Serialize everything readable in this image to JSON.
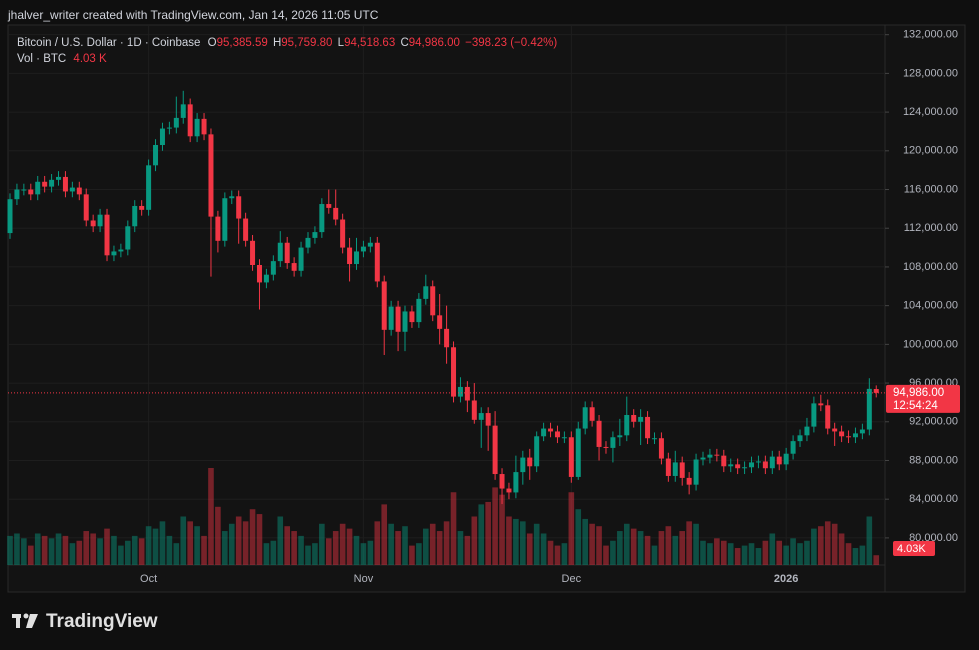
{
  "header": {
    "author": "jhalver_writer created with TradingView.com, Jan 14, 2026 11:05 UTC",
    "brand": "TradingView"
  },
  "chart_data": {
    "type": "candlestick",
    "title": "Bitcoin / U.S. Dollar · 1D · Coinbase",
    "legend": {
      "o": "O",
      "open": "95,385.59",
      "h": "H",
      "high": "95,759.80",
      "l": "L",
      "low": "94,518.63",
      "c": "C",
      "close": "94,986.00",
      "change": "−398.23 (−0.42%)",
      "vol_name": "Vol · BTC",
      "vol": "4.03 K"
    },
    "last_price_label": "94,986.00",
    "countdown": "12:54:24",
    "volume_tag": "4.03K",
    "up_color": "#089981",
    "down_color": "#f23645",
    "categories": [
      null,
      null,
      null,
      null,
      null,
      null,
      null,
      null,
      null,
      null,
      null,
      null,
      null,
      null,
      null,
      null,
      null,
      null,
      null,
      null,
      "Oct",
      null,
      null,
      null,
      null,
      null,
      null,
      null,
      null,
      null,
      null,
      null,
      null,
      null,
      null,
      null,
      null,
      null,
      null,
      null,
      null,
      null,
      null,
      null,
      null,
      null,
      null,
      null,
      null,
      null,
      null,
      "Nov",
      null,
      null,
      null,
      null,
      null,
      null,
      null,
      null,
      null,
      null,
      null,
      null,
      null,
      null,
      null,
      null,
      null,
      null,
      null,
      null,
      null,
      null,
      null,
      null,
      null,
      null,
      null,
      null,
      null,
      "Dec",
      null,
      null,
      null,
      null,
      null,
      null,
      null,
      null,
      null,
      null,
      null,
      null,
      null,
      null,
      null,
      null,
      null,
      null,
      null,
      null,
      null,
      null,
      null,
      null,
      null,
      null,
      null,
      null,
      null,
      null,
      "2026",
      null,
      null,
      null,
      null,
      null,
      null,
      null,
      null,
      null,
      null,
      null,
      null,
      null
    ],
    "open": [
      111500,
      115000,
      116000,
      116000,
      115500,
      116800,
      116300,
      117000,
      117300,
      115800,
      116200,
      115500,
      112800,
      112200,
      113400,
      109200,
      109600,
      109800,
      112200,
      114300,
      113900,
      118500,
      120600,
      122300,
      122400,
      123400,
      124800,
      121500,
      123300,
      121700,
      113200,
      110700,
      115100,
      115300,
      113000,
      110700,
      108200,
      106400,
      107200,
      108600,
      110500,
      108400,
      107600,
      110000,
      111000,
      111600,
      114500,
      114100,
      112900,
      110000,
      108300,
      109600,
      110100,
      110500,
      106500,
      101500,
      103900,
      101300,
      103400,
      102300,
      104700,
      106000,
      103000,
      101600,
      99700,
      94600,
      95600,
      94200,
      92200,
      92900,
      91600,
      86600,
      85100,
      84700,
      86800,
      88300,
      87400,
      90500,
      91300,
      91000,
      90400,
      90400,
      86300,
      91300,
      93500,
      92100,
      89400,
      89300,
      90400,
      90600,
      92700,
      92000,
      92500,
      90300,
      90300,
      88200,
      86400,
      87800,
      86200,
      85500,
      88100,
      88300,
      88600,
      88500,
      87400,
      87600,
      87200,
      87300,
      87800,
      87900,
      87200,
      88400,
      87600,
      88700,
      90000,
      90600,
      91500,
      93900,
      93700,
      91300,
      91000,
      90500,
      90400,
      90800,
      91200,
      95385.59
    ],
    "high": [
      115600,
      116600,
      116600,
      116600,
      117400,
      117400,
      117600,
      117900,
      117900,
      116800,
      116800,
      116100,
      113400,
      114000,
      114000,
      110200,
      110400,
      112800,
      114900,
      114900,
      119100,
      121200,
      122900,
      123000,
      125600,
      126200,
      125400,
      123900,
      123900,
      122300,
      113800,
      115700,
      115900,
      115900,
      113600,
      111300,
      108800,
      107800,
      109200,
      111700,
      111100,
      109000,
      110600,
      111600,
      112200,
      115100,
      116000,
      116000,
      113500,
      111000,
      111000,
      110700,
      111100,
      111100,
      107100,
      104500,
      104500,
      104000,
      104000,
      105300,
      107200,
      106600,
      105200,
      104000,
      100300,
      96600,
      96200,
      96000,
      93500,
      93500,
      93100,
      87200,
      85700,
      88500,
      89000,
      89200,
      91000,
      91900,
      91900,
      91600,
      91000,
      91000,
      92000,
      94100,
      94100,
      92700,
      90000,
      91000,
      92300,
      94600,
      93300,
      93300,
      93100,
      90900,
      90900,
      88800,
      89000,
      88400,
      86800,
      88700,
      88900,
      89200,
      89200,
      89100,
      88200,
      88200,
      87900,
      88400,
      88500,
      88500,
      89000,
      89000,
      89300,
      90600,
      91200,
      92400,
      94600,
      94800,
      94300,
      91900,
      91600,
      91100,
      91400,
      91800,
      96500,
      95759.8
    ],
    "low": [
      110900,
      114400,
      115400,
      114900,
      114900,
      115700,
      115700,
      116400,
      115200,
      115200,
      114900,
      112200,
      111600,
      111600,
      108600,
      108600,
      109000,
      109200,
      111600,
      113300,
      113300,
      117900,
      120000,
      121700,
      121800,
      122800,
      120900,
      120900,
      121100,
      107000,
      109500,
      110100,
      114500,
      110400,
      110100,
      107600,
      103600,
      105800,
      106600,
      108000,
      107800,
      107000,
      107000,
      109400,
      110400,
      111000,
      113500,
      112300,
      109400,
      106500,
      107700,
      109000,
      109500,
      105900,
      98900,
      100900,
      99300,
      99300,
      101700,
      101700,
      104100,
      102400,
      100000,
      98000,
      94000,
      94000,
      93000,
      91800,
      89300,
      89000,
      86000,
      83500,
      84000,
      84100,
      85500,
      86000,
      86800,
      90000,
      90400,
      89800,
      89800,
      85700,
      86000,
      90700,
      91500,
      88000,
      88700,
      87800,
      89500,
      90000,
      91400,
      89600,
      89700,
      89700,
      87600,
      85800,
      85800,
      85400,
      84500,
      84900,
      87500,
      87700,
      87900,
      86800,
      86800,
      86600,
      86600,
      86700,
      87200,
      86600,
      86600,
      87000,
      87000,
      88100,
      89400,
      90000,
      90900,
      93100,
      90700,
      89500,
      89900,
      89800,
      89800,
      90200,
      90600,
      94518.63
    ],
    "close": [
      115000,
      116000,
      116000,
      115500,
      116800,
      116300,
      117000,
      117300,
      115800,
      116200,
      115500,
      112800,
      112200,
      113400,
      109200,
      109600,
      109800,
      112200,
      114300,
      113900,
      118500,
      120600,
      122300,
      122400,
      123400,
      124800,
      121500,
      123300,
      121700,
      113200,
      110700,
      115100,
      115300,
      113000,
      110700,
      108200,
      106400,
      107200,
      108600,
      110500,
      108400,
      107600,
      110000,
      111000,
      111600,
      114500,
      114100,
      112900,
      110000,
      108300,
      109600,
      110100,
      110500,
      106500,
      101500,
      103900,
      101300,
      103400,
      102300,
      104700,
      106000,
      103000,
      101600,
      99700,
      94600,
      95600,
      94200,
      92200,
      92900,
      91600,
      86600,
      85100,
      84700,
      86800,
      88300,
      87400,
      90500,
      91300,
      91000,
      90400,
      90400,
      86300,
      91300,
      93500,
      92100,
      89400,
      89300,
      90400,
      90600,
      92700,
      92000,
      92500,
      90300,
      90300,
      88200,
      86400,
      87800,
      86200,
      85500,
      88100,
      88300,
      88600,
      88500,
      87400,
      87600,
      87200,
      87300,
      87800,
      87900,
      87200,
      88400,
      87600,
      88700,
      90000,
      90600,
      91500,
      93900,
      93700,
      91300,
      91000,
      90500,
      90400,
      90800,
      91200,
      95400,
      94986
    ],
    "volume": [
      12,
      13,
      11,
      8,
      13,
      12,
      11,
      13,
      12,
      9,
      10,
      14,
      13,
      11,
      15,
      12,
      8,
      10,
      12,
      11,
      16,
      15,
      18,
      12,
      9,
      20,
      18,
      16,
      12,
      40,
      24,
      14,
      17,
      20,
      18,
      23,
      21,
      9,
      10,
      20,
      16,
      14,
      12,
      8,
      9,
      17,
      11,
      14,
      17,
      15,
      12,
      9,
      10,
      18,
      25,
      17,
      14,
      16,
      8,
      9,
      15,
      17,
      14,
      18,
      30,
      14,
      12,
      20,
      25,
      26,
      32,
      29,
      20,
      19,
      18,
      13,
      17,
      13,
      10,
      8,
      9,
      30,
      23,
      19,
      17,
      16,
      8,
      10,
      14,
      17,
      15,
      14,
      12,
      8,
      14,
      16,
      12,
      14,
      18,
      17,
      10,
      9,
      11,
      10,
      9,
      7,
      8,
      9,
      7,
      10,
      13,
      10,
      8,
      11,
      9,
      10,
      15,
      16,
      18,
      17,
      13,
      9,
      7,
      8,
      20,
      4.03
    ],
    "ylim": [
      77200,
      133000
    ],
    "yticks": [
      {
        "value": 80000,
        "label": "80,000.00"
      },
      {
        "value": 84000,
        "label": "84,000.00"
      },
      {
        "value": 88000,
        "label": "88,000.00"
      },
      {
        "value": 92000,
        "label": "92,000.00"
      },
      {
        "value": 96000,
        "label": "96,000.00"
      },
      {
        "value": 100000,
        "label": "100,000.00"
      },
      {
        "value": 104000,
        "label": "104,000.00"
      },
      {
        "value": 108000,
        "label": "108,000.00"
      },
      {
        "value": 112000,
        "label": "112,000.00"
      },
      {
        "value": 116000,
        "label": "116,000.00"
      },
      {
        "value": 120000,
        "label": "120,000.00"
      },
      {
        "value": 124000,
        "label": "124,000.00"
      },
      {
        "value": 128000,
        "label": "128,000.00"
      },
      {
        "value": 132000,
        "label": "132,000.00"
      }
    ],
    "grid": true
  }
}
